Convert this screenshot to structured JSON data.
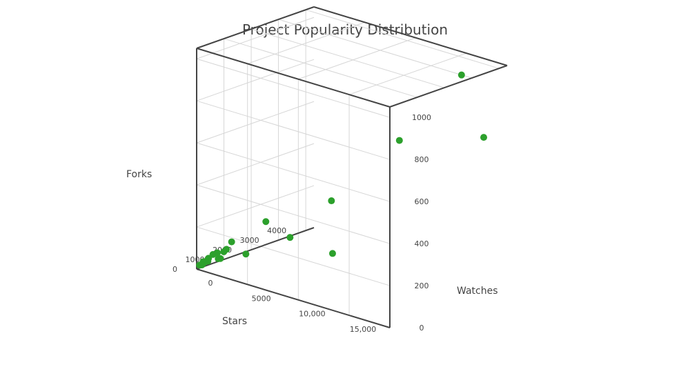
{
  "chart_data": {
    "type": "scatter3d",
    "title": "Project Popularity Distribution",
    "xlabel": "Stars",
    "ylabel": "Watches",
    "zlabel": "Forks",
    "x_ticks": [
      "0",
      "5000",
      "10,000",
      "15,000"
    ],
    "y_ticks": [
      "0",
      "200",
      "400",
      "600",
      "800",
      "1000"
    ],
    "z_ticks": [
      "0",
      "1000",
      "2000",
      "3000",
      "4000"
    ],
    "xlim": [
      0,
      19000
    ],
    "ylim": [
      0,
      1050
    ],
    "zlim": [
      0,
      4300
    ],
    "marker_color": "#2ca02c",
    "points": [
      {
        "x": 17500,
        "y": 700,
        "z": 4000
      },
      {
        "x": 18000,
        "y": 1050,
        "z": 3000
      },
      {
        "x": 13500,
        "y": 700,
        "z": 2400
      },
      {
        "x": 8000,
        "y": 100,
        "z": 2000
      },
      {
        "x": 9500,
        "y": 400,
        "z": 1400
      },
      {
        "x": 6500,
        "y": 200,
        "z": 1000
      },
      {
        "x": 6000,
        "y": 300,
        "z": 300
      },
      {
        "x": 3500,
        "y": 100,
        "z": 500
      },
      {
        "x": 2500,
        "y": 150,
        "z": 350
      },
      {
        "x": 2400,
        "y": 120,
        "z": 200
      },
      {
        "x": 2000,
        "y": 100,
        "z": 250
      },
      {
        "x": 2200,
        "y": 80,
        "z": 50
      },
      {
        "x": 1500,
        "y": 90,
        "z": 200
      },
      {
        "x": 1200,
        "y": 80,
        "z": 150
      },
      {
        "x": 900,
        "y": 60,
        "z": 100
      },
      {
        "x": 700,
        "y": 50,
        "z": 150
      },
      {
        "x": 500,
        "y": 40,
        "z": 50
      },
      {
        "x": 400,
        "y": 30,
        "z": 120
      },
      {
        "x": 300,
        "y": 20,
        "z": 80
      },
      {
        "x": 200,
        "y": 20,
        "z": 30
      },
      {
        "x": 1800,
        "y": 70,
        "z": 120
      },
      {
        "x": 1000,
        "y": 50,
        "z": 40
      }
    ]
  }
}
